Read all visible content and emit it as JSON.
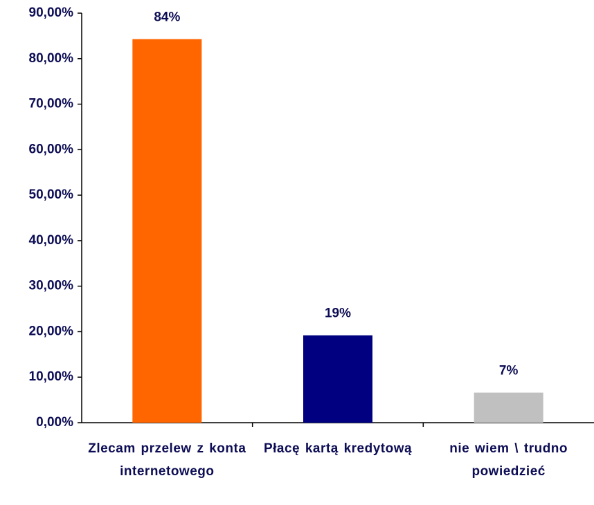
{
  "chart_data": {
    "type": "bar",
    "categories": [
      "Zlecam przelew z konta internetowego",
      "Płacę kartą kredytową",
      "nie wiem \\ trudno powiedzieć"
    ],
    "values": [
      84.3,
      19.2,
      6.6
    ],
    "value_labels": [
      "84%",
      "19%",
      "7%"
    ],
    "colors": [
      "#ff6600",
      "#000080",
      "#c0c0c0"
    ],
    "ylim": [
      0,
      90
    ],
    "yticks": [
      {
        "value": 0,
        "label": "0,00%"
      },
      {
        "value": 10,
        "label": "10,00%"
      },
      {
        "value": 20,
        "label": "20,00%"
      },
      {
        "value": 30,
        "label": "30,00%"
      },
      {
        "value": 40,
        "label": "40,00%"
      },
      {
        "value": 50,
        "label": "50,00%"
      },
      {
        "value": 60,
        "label": "60,00%"
      },
      {
        "value": 70,
        "label": "70,00%"
      },
      {
        "value": 80,
        "label": "80,00%"
      },
      {
        "value": 90,
        "label": "90,00%"
      }
    ],
    "grid": false
  }
}
